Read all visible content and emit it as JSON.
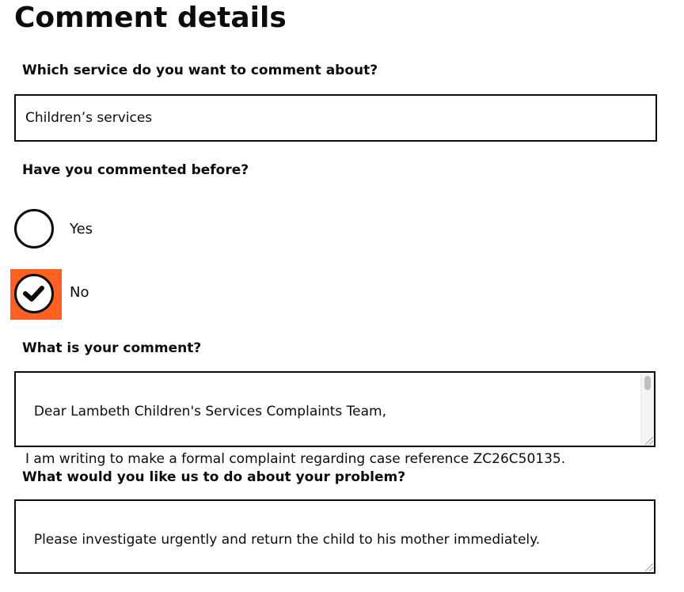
{
  "page_title": "Comment details",
  "service": {
    "label": "Which service do you want to comment about?",
    "value": "Children’s services"
  },
  "commented_before": {
    "label": "Have you commented before?",
    "options": [
      {
        "label": "Yes",
        "checked": false
      },
      {
        "label": "No",
        "checked": true
      }
    ],
    "focus_color": "#ff6122"
  },
  "comment": {
    "label": "What is your comment?",
    "value": "Dear Lambeth Children's Services Complaints Team,\n\nI am writing to make a formal complaint regarding case reference ZC26C50135."
  },
  "resolution": {
    "label": "What would you like us to do about your problem?",
    "value": "Please investigate urgently and return the child to his mother immediately."
  }
}
